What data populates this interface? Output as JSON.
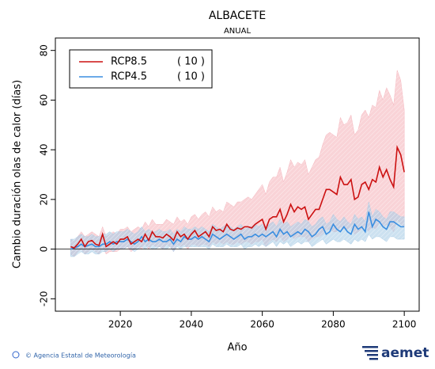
{
  "chart_data": {
    "type": "line",
    "title": "ALBACETE",
    "subtitle": "ANUAL",
    "xlabel": "Año",
    "ylabel": "Cambio duración olas de calor (días)",
    "x": [
      2006,
      2007,
      2008,
      2009,
      2010,
      2011,
      2012,
      2013,
      2014,
      2015,
      2016,
      2017,
      2018,
      2019,
      2020,
      2021,
      2022,
      2023,
      2024,
      2025,
      2026,
      2027,
      2028,
      2029,
      2030,
      2031,
      2032,
      2033,
      2034,
      2035,
      2036,
      2037,
      2038,
      2039,
      2040,
      2041,
      2042,
      2043,
      2044,
      2045,
      2046,
      2047,
      2048,
      2049,
      2050,
      2051,
      2052,
      2053,
      2054,
      2055,
      2056,
      2057,
      2058,
      2059,
      2060,
      2061,
      2062,
      2063,
      2064,
      2065,
      2066,
      2067,
      2068,
      2069,
      2070,
      2071,
      2072,
      2073,
      2074,
      2075,
      2076,
      2077,
      2078,
      2079,
      2080,
      2081,
      2082,
      2083,
      2084,
      2085,
      2086,
      2087,
      2088,
      2089,
      2090,
      2091,
      2092,
      2093,
      2094,
      2095,
      2096,
      2097,
      2098,
      2099,
      2100
    ],
    "series": [
      {
        "name": "RCP8.5",
        "legend_note": "( 10 )",
        "color": "#cc1111",
        "band_color": "#f5b5bd",
        "values": [
          1,
          0.5,
          2,
          4,
          1,
          3,
          3.5,
          2,
          1.5,
          6,
          1,
          2,
          3,
          2,
          4,
          4,
          5,
          2,
          3,
          4,
          3,
          6,
          3.5,
          7,
          5,
          5,
          4.5,
          6,
          5,
          3.5,
          7,
          5,
          6,
          4,
          6,
          7.5,
          5,
          6,
          7,
          5,
          9,
          7.5,
          8,
          7,
          10,
          8,
          7.5,
          8.5,
          8,
          9,
          9,
          8.5,
          10,
          11,
          12,
          8,
          12,
          13,
          13,
          16,
          11,
          14,
          18,
          15,
          17,
          16,
          17,
          12,
          14,
          16,
          16,
          20,
          24,
          24,
          23,
          22,
          29,
          26,
          26,
          28,
          20,
          21,
          26,
          27,
          24,
          28,
          27,
          33,
          29,
          32,
          28,
          25,
          41,
          38,
          31
        ],
        "upper": [
          4,
          3,
          5,
          7,
          5,
          6,
          7,
          6,
          5,
          9,
          5,
          6,
          7,
          6,
          8,
          8,
          9,
          7,
          8,
          9,
          8,
          11,
          9,
          12,
          10,
          10,
          10,
          12,
          11,
          10,
          13,
          11,
          12,
          10,
          13,
          14,
          12,
          14,
          15,
          13,
          17,
          15,
          16,
          15,
          19,
          18,
          17,
          19,
          19,
          20,
          21,
          20,
          22,
          24,
          26,
          22,
          27,
          29,
          29,
          33,
          27,
          31,
          36,
          33,
          35,
          34,
          36,
          30,
          33,
          36,
          37,
          42,
          46,
          47,
          46,
          45,
          53,
          50,
          51,
          54,
          46,
          48,
          54,
          56,
          53,
          58,
          57,
          64,
          60,
          65,
          62,
          58,
          72,
          68,
          56
        ],
        "lower": [
          -2,
          -3,
          -1,
          0,
          -2,
          -1,
          0,
          -1,
          -2,
          1,
          -2,
          -1,
          -1,
          -1,
          0,
          0,
          1,
          -1,
          0,
          1,
          0,
          2,
          0,
          2,
          1,
          1,
          0,
          2,
          1,
          -1,
          2,
          1,
          2,
          0,
          2,
          2,
          1,
          2,
          2,
          1,
          3,
          2,
          3,
          2,
          3,
          2,
          2,
          3,
          2,
          3,
          3,
          2,
          3,
          3,
          4,
          1,
          3,
          4,
          3,
          5,
          3,
          4,
          6,
          4,
          5,
          5,
          5,
          3,
          4,
          5,
          5,
          6,
          8,
          8,
          7,
          7,
          9,
          8,
          8,
          9,
          6,
          7,
          8,
          9,
          7,
          9,
          8,
          11,
          9,
          10,
          9,
          7,
          12,
          10,
          9
        ]
      },
      {
        "name": "RCP4.5",
        "legend_note": "( 10 )",
        "color": "#3a8ee0",
        "band_color": "#aacde6",
        "values": [
          0,
          0.5,
          1,
          2,
          1,
          1.5,
          2,
          1,
          1,
          2,
          2,
          3,
          2,
          3,
          3,
          3,
          4,
          3,
          2,
          3,
          5,
          3,
          4,
          3,
          3,
          4,
          3,
          3,
          4,
          2,
          4,
          3,
          5,
          4,
          4,
          5,
          4,
          5,
          4,
          3,
          6,
          5,
          4,
          5,
          6,
          5,
          4,
          5,
          6,
          4,
          5,
          5,
          6,
          5,
          6,
          5,
          6,
          7,
          5,
          8,
          6,
          7,
          5,
          6,
          7,
          6,
          8,
          7,
          5,
          6,
          8,
          9,
          6,
          7,
          10,
          8,
          7,
          9,
          7,
          6,
          10,
          8,
          9,
          7,
          15,
          9,
          12,
          11,
          9,
          8,
          11,
          11,
          10,
          9,
          9
        ],
        "upper": [
          4,
          4,
          5,
          6,
          5,
          5,
          6,
          5,
          5,
          6,
          6,
          7,
          6,
          7,
          7,
          7,
          8,
          7,
          6,
          7,
          9,
          7,
          8,
          7,
          7,
          8,
          7,
          7,
          8,
          6,
          8,
          7,
          9,
          8,
          8,
          9,
          8,
          9,
          8,
          7,
          10,
          9,
          8,
          9,
          10,
          9,
          8,
          9,
          10,
          8,
          9,
          9,
          10,
          9,
          10,
          9,
          10,
          11,
          9,
          12,
          10,
          11,
          9,
          10,
          11,
          10,
          12,
          11,
          9,
          10,
          12,
          13,
          10,
          11,
          14,
          12,
          11,
          13,
          11,
          10,
          14,
          12,
          13,
          11,
          19,
          13,
          16,
          15,
          13,
          12,
          15,
          15,
          14,
          13,
          13
        ],
        "lower": [
          -3,
          -3,
          -2,
          -1,
          -2,
          -2,
          -1,
          -2,
          -2,
          -1,
          -1,
          0,
          -1,
          0,
          0,
          0,
          1,
          0,
          -1,
          0,
          1,
          0,
          1,
          0,
          0,
          1,
          0,
          0,
          1,
          -1,
          1,
          0,
          1,
          1,
          1,
          1,
          1,
          1,
          1,
          0,
          2,
          1,
          1,
          1,
          2,
          1,
          1,
          1,
          2,
          0,
          1,
          1,
          2,
          1,
          2,
          1,
          2,
          3,
          1,
          3,
          2,
          3,
          1,
          2,
          3,
          2,
          3,
          3,
          1,
          2,
          3,
          4,
          2,
          3,
          4,
          3,
          3,
          4,
          3,
          2,
          4,
          3,
          4,
          3,
          6,
          4,
          5,
          5,
          4,
          3,
          5,
          5,
          4,
          4,
          4
        ]
      }
    ],
    "xlim": [
      2001.7,
      2104.2
    ],
    "xticks": [
      2020,
      2040,
      2060,
      2080,
      2100
    ],
    "ylim": [
      -25,
      85
    ],
    "yticks": [
      -20,
      0,
      20,
      40,
      60,
      80
    ],
    "zero_line": true,
    "legend": "upper-left"
  },
  "footer": {
    "credit": "© Agencia Estatal de Meteorología",
    "logo": "aemet"
  }
}
